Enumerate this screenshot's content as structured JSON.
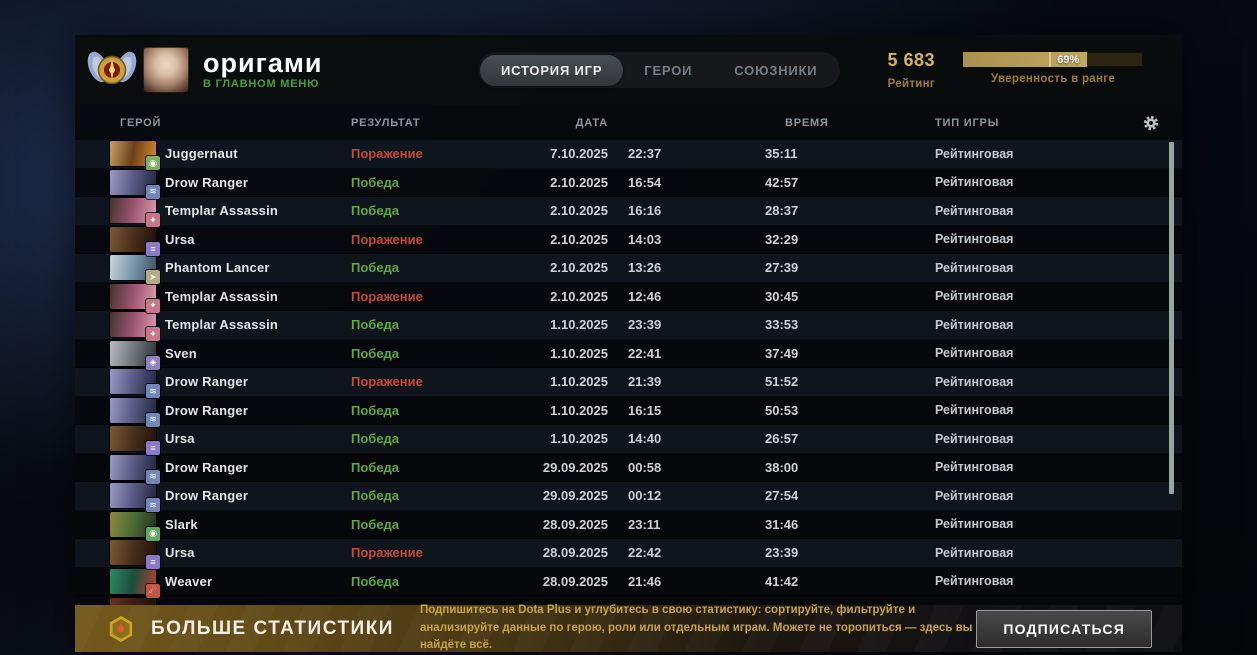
{
  "header": {
    "player_name": "оригами",
    "player_status": "В ГЛАВНОМ МЕНЮ",
    "tabs": [
      {
        "label": "ИСТОРИЯ ИГР",
        "active": true
      },
      {
        "label": "ГЕРОИ",
        "active": false
      },
      {
        "label": "СОЮЗНИКИ",
        "active": false
      }
    ],
    "rating": {
      "value": "5 683",
      "label": "Рейтинг"
    },
    "confidence": {
      "percent": 69,
      "percent_label": "69%",
      "caption": "Уверенность в ранге"
    }
  },
  "table": {
    "columns": {
      "hero": "ГЕРОЙ",
      "result": "РЕЗУЛЬТАТ",
      "date": "ДАТА",
      "duration": "ВРЕМЯ",
      "type": "ТИП ИГРЫ"
    },
    "rows": [
      {
        "hero": "Juggernaut",
        "result": "Поражение",
        "result_kind": "loss",
        "date": "7.10.2025",
        "time": "22:37",
        "duration": "35:11",
        "type": "Рейтинговая",
        "portrait": [
          "#c8a068",
          "#6a401a",
          "#d88a30"
        ],
        "badge": {
          "color": "#7fae68",
          "glyph": "◉"
        }
      },
      {
        "hero": "Drow Ranger",
        "result": "Победа",
        "result_kind": "win",
        "date": "2.10.2025",
        "time": "16:54",
        "duration": "42:57",
        "type": "Рейтинговая",
        "portrait": [
          "#9a9cc4",
          "#585a86",
          "#23243c"
        ],
        "badge": {
          "color": "#6f88b8",
          "glyph": "≋"
        }
      },
      {
        "hero": "Templar Assassin",
        "result": "Победа",
        "result_kind": "win",
        "date": "2.10.2025",
        "time": "16:16",
        "duration": "28:37",
        "type": "Рейтинговая",
        "portrait": [
          "#44342e",
          "#9a5570",
          "#e09ab0"
        ],
        "badge": {
          "color": "#c77888",
          "glyph": "✦"
        }
      },
      {
        "hero": "Ursa",
        "result": "Поражение",
        "result_kind": "loss",
        "date": "2.10.2025",
        "time": "14:03",
        "duration": "32:29",
        "type": "Рейтинговая",
        "portrait": [
          "#7a5a38",
          "#4a2e1a",
          "#1c110a"
        ],
        "badge": {
          "color": "#8a7ac8",
          "glyph": "≡"
        }
      },
      {
        "hero": "Phantom Lancer",
        "result": "Победа",
        "result_kind": "win",
        "date": "2.10.2025",
        "time": "13:26",
        "duration": "27:39",
        "type": "Рейтинговая",
        "portrait": [
          "#c8d4dc",
          "#7a96ac",
          "#3c5064"
        ],
        "badge": {
          "color": "#b4aa84",
          "glyph": "➤"
        }
      },
      {
        "hero": "Templar Assassin",
        "result": "Поражение",
        "result_kind": "loss",
        "date": "2.10.2025",
        "time": "12:46",
        "duration": "30:45",
        "type": "Рейтинговая",
        "portrait": [
          "#44342e",
          "#9a5570",
          "#e09ab0"
        ],
        "badge": {
          "color": "#c77888",
          "glyph": "✦"
        }
      },
      {
        "hero": "Templar Assassin",
        "result": "Победа",
        "result_kind": "win",
        "date": "1.10.2025",
        "time": "23:39",
        "duration": "33:53",
        "type": "Рейтинговая",
        "portrait": [
          "#44342e",
          "#9a5570",
          "#e09ab0"
        ],
        "badge": {
          "color": "#c77888",
          "glyph": "✦"
        }
      },
      {
        "hero": "Sven",
        "result": "Победа",
        "result_kind": "win",
        "date": "1.10.2025",
        "time": "22:41",
        "duration": "37:49",
        "type": "Рейтинговая",
        "portrait": [
          "#b8bcc0",
          "#70767c",
          "#2e3236"
        ],
        "badge": {
          "color": "#9080c4",
          "glyph": "◈"
        }
      },
      {
        "hero": "Drow Ranger",
        "result": "Поражение",
        "result_kind": "loss",
        "date": "1.10.2025",
        "time": "21:39",
        "duration": "51:52",
        "type": "Рейтинговая",
        "portrait": [
          "#9a9cc4",
          "#585a86",
          "#23243c"
        ],
        "badge": {
          "color": "#6f88b8",
          "glyph": "≋"
        }
      },
      {
        "hero": "Drow Ranger",
        "result": "Победа",
        "result_kind": "win",
        "date": "1.10.2025",
        "time": "16:15",
        "duration": "50:53",
        "type": "Рейтинговая",
        "portrait": [
          "#9a9cc4",
          "#585a86",
          "#23243c"
        ],
        "badge": {
          "color": "#6f88b8",
          "glyph": "≋"
        }
      },
      {
        "hero": "Ursa",
        "result": "Победа",
        "result_kind": "win",
        "date": "1.10.2025",
        "time": "14:40",
        "duration": "26:57",
        "type": "Рейтинговая",
        "portrait": [
          "#7a5a38",
          "#4a2e1a",
          "#1c110a"
        ],
        "badge": {
          "color": "#8a7ac8",
          "glyph": "≡"
        }
      },
      {
        "hero": "Drow Ranger",
        "result": "Победа",
        "result_kind": "win",
        "date": "29.09.2025",
        "time": "00:58",
        "duration": "38:00",
        "type": "Рейтинговая",
        "portrait": [
          "#9a9cc4",
          "#585a86",
          "#23243c"
        ],
        "badge": {
          "color": "#6f88b8",
          "glyph": "≋"
        }
      },
      {
        "hero": "Drow Ranger",
        "result": "Победа",
        "result_kind": "win",
        "date": "29.09.2025",
        "time": "00:12",
        "duration": "27:54",
        "type": "Рейтинговая",
        "portrait": [
          "#9a9cc4",
          "#585a86",
          "#23243c"
        ],
        "badge": {
          "color": "#6f88b8",
          "glyph": "≋"
        }
      },
      {
        "hero": "Slark",
        "result": "Победа",
        "result_kind": "win",
        "date": "28.09.2025",
        "time": "23:11",
        "duration": "31:46",
        "type": "Рейтинговая",
        "portrait": [
          "#8a8a40",
          "#4e6a34",
          "#22301a"
        ],
        "badge": {
          "color": "#62a860",
          "glyph": "◉"
        }
      },
      {
        "hero": "Ursa",
        "result": "Поражение",
        "result_kind": "loss",
        "date": "28.09.2025",
        "time": "22:42",
        "duration": "23:39",
        "type": "Рейтинговая",
        "portrait": [
          "#7a5a38",
          "#4a2e1a",
          "#1c110a"
        ],
        "badge": {
          "color": "#8a7ac8",
          "glyph": "≡"
        }
      },
      {
        "hero": "Weaver",
        "result": "Победа",
        "result_kind": "win",
        "date": "28.09.2025",
        "time": "21:46",
        "duration": "41:42",
        "type": "Рейтинговая",
        "portrait": [
          "#2e8a64",
          "#1a4e3a",
          "#b84030"
        ],
        "badge": {
          "color": "#c25444",
          "glyph": "☄"
        }
      }
    ],
    "partial_row": {
      "portrait": [
        "#6a3026",
        "#3a1c14",
        "#20100c"
      ]
    }
  },
  "banner": {
    "title": "БОЛЬШЕ СТАТИСТИКИ",
    "description": "Подпишитесь на Dota Plus и углубитесь в свою статистику: сортируйте, фильтруйте и анализируйте данные по герою, роли или отдельным играм. Можете не торопиться — здесь вы найдёте всё.",
    "subscribe_label": "ПОДПИСАТЬСЯ"
  },
  "colors": {
    "win": "#61a838",
    "loss": "#c74a32",
    "gold_accent": "#d8b358",
    "gold_dim": "#a07c30"
  }
}
